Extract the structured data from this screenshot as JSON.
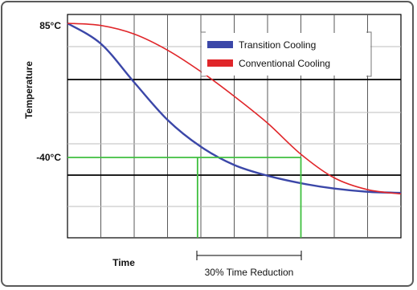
{
  "chart_data": {
    "type": "line",
    "title": "",
    "xlabel": "Time",
    "ylabel": "Temperature",
    "y_tick_labels": [
      "85°C",
      "-40°C"
    ],
    "x_annotation": "30% Time Reduction",
    "grid": true,
    "legend_position": "top-right",
    "series": [
      {
        "name": "Transition Cooling",
        "color": "#3b47a8",
        "x": [
          0,
          1,
          2,
          3,
          4,
          5,
          6,
          7,
          8,
          9,
          10
        ],
        "y": [
          85,
          66,
          30,
          -5,
          -30,
          -47,
          -57,
          -64,
          -69,
          -72,
          -73
        ]
      },
      {
        "name": "Conventional Cooling",
        "color": "#e0262a",
        "x": [
          0,
          1,
          2,
          3,
          4,
          5,
          6,
          7,
          8,
          9,
          10
        ],
        "y": [
          85,
          83,
          75,
          60,
          40,
          17,
          -8,
          -37,
          -59,
          -70,
          -74
        ]
      }
    ],
    "reference_lines": {
      "color": "#3fbf3f",
      "y_level": -40,
      "x_transition": 3.9,
      "x_conventional": 7.0
    }
  }
}
